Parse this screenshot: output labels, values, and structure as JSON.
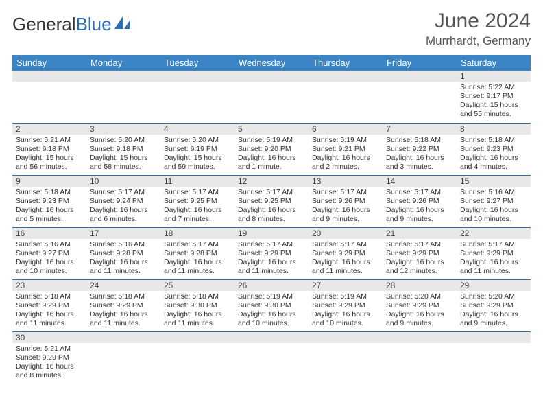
{
  "brand": {
    "part1": "General",
    "part2": "Blue"
  },
  "title": "June 2024",
  "location": "Murrhardt, Germany",
  "colors": {
    "header_bg": "#3b85c6",
    "header_text": "#ffffff",
    "border": "#2d6fb5",
    "daynum_bg": "#e8e8e8",
    "body_text": "#333333"
  },
  "weekdays": [
    "Sunday",
    "Monday",
    "Tuesday",
    "Wednesday",
    "Thursday",
    "Friday",
    "Saturday"
  ],
  "weeks": [
    [
      {
        "day": "",
        "lines": []
      },
      {
        "day": "",
        "lines": []
      },
      {
        "day": "",
        "lines": []
      },
      {
        "day": "",
        "lines": []
      },
      {
        "day": "",
        "lines": []
      },
      {
        "day": "",
        "lines": []
      },
      {
        "day": "1",
        "lines": [
          "Sunrise: 5:22 AM",
          "Sunset: 9:17 PM",
          "Daylight: 15 hours and 55 minutes."
        ]
      }
    ],
    [
      {
        "day": "2",
        "lines": [
          "Sunrise: 5:21 AM",
          "Sunset: 9:18 PM",
          "Daylight: 15 hours and 56 minutes."
        ]
      },
      {
        "day": "3",
        "lines": [
          "Sunrise: 5:20 AM",
          "Sunset: 9:18 PM",
          "Daylight: 15 hours and 58 minutes."
        ]
      },
      {
        "day": "4",
        "lines": [
          "Sunrise: 5:20 AM",
          "Sunset: 9:19 PM",
          "Daylight: 15 hours and 59 minutes."
        ]
      },
      {
        "day": "5",
        "lines": [
          "Sunrise: 5:19 AM",
          "Sunset: 9:20 PM",
          "Daylight: 16 hours and 1 minute."
        ]
      },
      {
        "day": "6",
        "lines": [
          "Sunrise: 5:19 AM",
          "Sunset: 9:21 PM",
          "Daylight: 16 hours and 2 minutes."
        ]
      },
      {
        "day": "7",
        "lines": [
          "Sunrise: 5:18 AM",
          "Sunset: 9:22 PM",
          "Daylight: 16 hours and 3 minutes."
        ]
      },
      {
        "day": "8",
        "lines": [
          "Sunrise: 5:18 AM",
          "Sunset: 9:23 PM",
          "Daylight: 16 hours and 4 minutes."
        ]
      }
    ],
    [
      {
        "day": "9",
        "lines": [
          "Sunrise: 5:18 AM",
          "Sunset: 9:23 PM",
          "Daylight: 16 hours and 5 minutes."
        ]
      },
      {
        "day": "10",
        "lines": [
          "Sunrise: 5:17 AM",
          "Sunset: 9:24 PM",
          "Daylight: 16 hours and 6 minutes."
        ]
      },
      {
        "day": "11",
        "lines": [
          "Sunrise: 5:17 AM",
          "Sunset: 9:25 PM",
          "Daylight: 16 hours and 7 minutes."
        ]
      },
      {
        "day": "12",
        "lines": [
          "Sunrise: 5:17 AM",
          "Sunset: 9:25 PM",
          "Daylight: 16 hours and 8 minutes."
        ]
      },
      {
        "day": "13",
        "lines": [
          "Sunrise: 5:17 AM",
          "Sunset: 9:26 PM",
          "Daylight: 16 hours and 9 minutes."
        ]
      },
      {
        "day": "14",
        "lines": [
          "Sunrise: 5:17 AM",
          "Sunset: 9:26 PM",
          "Daylight: 16 hours and 9 minutes."
        ]
      },
      {
        "day": "15",
        "lines": [
          "Sunrise: 5:16 AM",
          "Sunset: 9:27 PM",
          "Daylight: 16 hours and 10 minutes."
        ]
      }
    ],
    [
      {
        "day": "16",
        "lines": [
          "Sunrise: 5:16 AM",
          "Sunset: 9:27 PM",
          "Daylight: 16 hours and 10 minutes."
        ]
      },
      {
        "day": "17",
        "lines": [
          "Sunrise: 5:16 AM",
          "Sunset: 9:28 PM",
          "Daylight: 16 hours and 11 minutes."
        ]
      },
      {
        "day": "18",
        "lines": [
          "Sunrise: 5:17 AM",
          "Sunset: 9:28 PM",
          "Daylight: 16 hours and 11 minutes."
        ]
      },
      {
        "day": "19",
        "lines": [
          "Sunrise: 5:17 AM",
          "Sunset: 9:29 PM",
          "Daylight: 16 hours and 11 minutes."
        ]
      },
      {
        "day": "20",
        "lines": [
          "Sunrise: 5:17 AM",
          "Sunset: 9:29 PM",
          "Daylight: 16 hours and 11 minutes."
        ]
      },
      {
        "day": "21",
        "lines": [
          "Sunrise: 5:17 AM",
          "Sunset: 9:29 PM",
          "Daylight: 16 hours and 12 minutes."
        ]
      },
      {
        "day": "22",
        "lines": [
          "Sunrise: 5:17 AM",
          "Sunset: 9:29 PM",
          "Daylight: 16 hours and 11 minutes."
        ]
      }
    ],
    [
      {
        "day": "23",
        "lines": [
          "Sunrise: 5:18 AM",
          "Sunset: 9:29 PM",
          "Daylight: 16 hours and 11 minutes."
        ]
      },
      {
        "day": "24",
        "lines": [
          "Sunrise: 5:18 AM",
          "Sunset: 9:29 PM",
          "Daylight: 16 hours and 11 minutes."
        ]
      },
      {
        "day": "25",
        "lines": [
          "Sunrise: 5:18 AM",
          "Sunset: 9:30 PM",
          "Daylight: 16 hours and 11 minutes."
        ]
      },
      {
        "day": "26",
        "lines": [
          "Sunrise: 5:19 AM",
          "Sunset: 9:30 PM",
          "Daylight: 16 hours and 10 minutes."
        ]
      },
      {
        "day": "27",
        "lines": [
          "Sunrise: 5:19 AM",
          "Sunset: 9:29 PM",
          "Daylight: 16 hours and 10 minutes."
        ]
      },
      {
        "day": "28",
        "lines": [
          "Sunrise: 5:20 AM",
          "Sunset: 9:29 PM",
          "Daylight: 16 hours and 9 minutes."
        ]
      },
      {
        "day": "29",
        "lines": [
          "Sunrise: 5:20 AM",
          "Sunset: 9:29 PM",
          "Daylight: 16 hours and 9 minutes."
        ]
      }
    ],
    [
      {
        "day": "30",
        "lines": [
          "Sunrise: 5:21 AM",
          "Sunset: 9:29 PM",
          "Daylight: 16 hours and 8 minutes."
        ]
      },
      {
        "day": "",
        "lines": []
      },
      {
        "day": "",
        "lines": []
      },
      {
        "day": "",
        "lines": []
      },
      {
        "day": "",
        "lines": []
      },
      {
        "day": "",
        "lines": []
      },
      {
        "day": "",
        "lines": []
      }
    ]
  ]
}
